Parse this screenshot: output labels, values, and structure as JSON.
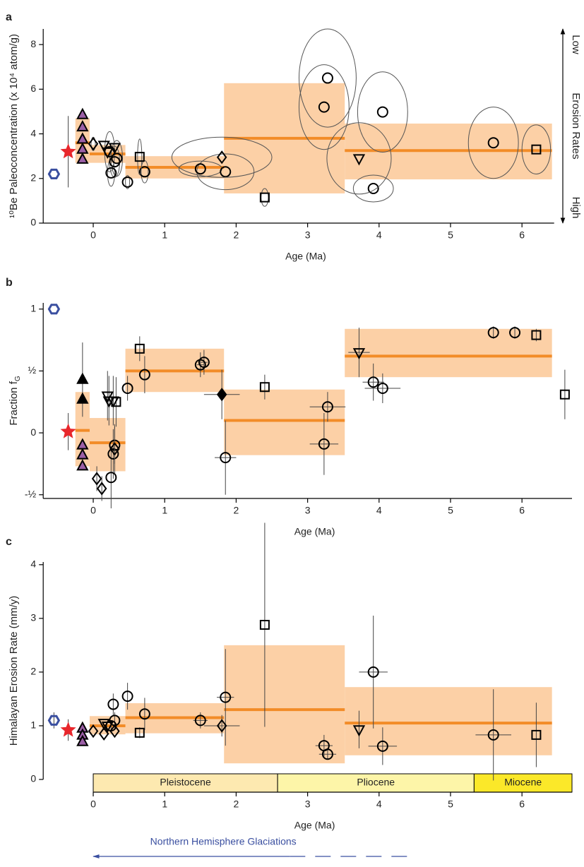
{
  "chart_data": [
    {
      "type": "scatter",
      "label": "a",
      "xlabel": "Age (Ma)",
      "ylabel": "¹⁰Be Paleoconcentration (x 10⁴ atom/g)",
      "xlim": [
        -0.7,
        6.45
      ],
      "ylim": [
        0,
        8.7
      ],
      "xticks": [
        0,
        1,
        2,
        3,
        4,
        5,
        6
      ],
      "yticks": [
        0,
        2,
        4,
        6,
        8
      ],
      "right_annotations": [
        "Low",
        "Erosion Rates",
        "High"
      ],
      "boxes": {
        "x0": [
          -0.25,
          -0.05,
          0.45,
          1.83,
          3.52
        ],
        "x1": [
          -0.05,
          0.45,
          1.83,
          3.52,
          6.42
        ],
        "y0": [
          2.7,
          2.7,
          2.0,
          1.33,
          1.96
        ],
        "y1": [
          4.7,
          3.5,
          3.0,
          6.27,
          4.46
        ],
        "mean": [
          3.6,
          3.1,
          2.5,
          3.8,
          3.25
        ],
        "color": "#fbc896",
        "mean_color": "#f28c28"
      },
      "series": [
        {
          "marker": "circle",
          "color": "#000",
          "fill": "none",
          "error_style": "ellipse",
          "x": [
            0.48,
            0.72,
            0.25,
            0.3,
            0.33,
            0.23,
            1.5,
            1.85,
            3.23,
            3.28,
            3.92,
            4.05,
            5.6
          ],
          "y": [
            1.84,
            2.3,
            2.25,
            2.75,
            2.9,
            3.2,
            2.43,
            2.3,
            5.2,
            6.5,
            1.55,
            4.98,
            3.6
          ],
          "xerr": [
            0.02,
            0.05,
            0.05,
            0.07,
            0.08,
            0.07,
            0.3,
            0.4,
            0.35,
            0.4,
            0.28,
            0.35,
            0.35
          ],
          "yerr": [
            0.3,
            0.5,
            0.6,
            0.7,
            0.8,
            0.9,
            0.35,
            0.8,
            1.9,
            2.2,
            0.6,
            1.8,
            1.6
          ]
        },
        {
          "marker": "square",
          "color": "#000",
          "fill": "none",
          "error_style": "ellipse",
          "x": [
            0.65,
            2.4,
            6.2
          ],
          "y": [
            2.97,
            1.15,
            3.3
          ],
          "xerr": [
            0.02,
            0.05,
            0.2
          ],
          "yerr": [
            0.8,
            0.4,
            1.1
          ]
        },
        {
          "marker": "diamond",
          "color": "#000",
          "fill": "none",
          "error_style": "ellipse",
          "x": [
            0.0,
            1.8
          ],
          "y": [
            3.55,
            2.95
          ],
          "xerr": [
            0.03,
            0.7
          ],
          "yerr": [
            0.3,
            0.9
          ]
        },
        {
          "marker": "down-triangle",
          "color": "#000",
          "fill": "none",
          "error_style": "ellipse",
          "x": [
            0.15,
            0.2,
            0.3,
            3.72
          ],
          "y": [
            3.5,
            3.2,
            3.4,
            2.9
          ],
          "xerr": [
            null,
            null,
            null,
            0.45
          ],
          "yerr": [
            null,
            null,
            null,
            1.6
          ]
        },
        {
          "marker": "up-triangle",
          "color": "#000",
          "fill": "#9b5fa6",
          "x": [
            -0.15,
            -0.15,
            -0.15,
            -0.15,
            -0.15
          ],
          "y": [
            4.85,
            4.3,
            3.75,
            3.3,
            2.85
          ]
        },
        {
          "marker": "star",
          "color": "#e8262b",
          "fill": "#e8262b",
          "error_style": "bar",
          "x": [
            -0.35
          ],
          "y": [
            3.2
          ],
          "yerr": [
            1.6
          ]
        },
        {
          "marker": "hexagon",
          "color": "#3a4fa0",
          "fill": "none",
          "x": [
            -0.55
          ],
          "y": [
            2.2
          ]
        }
      ]
    },
    {
      "type": "scatter",
      "label": "b",
      "xlabel": "Age (Ma)",
      "ylabel": "Fraction f",
      "ylabel_sub": "G",
      "xlim": [
        -0.7,
        6.7
      ],
      "ylim": [
        -0.53,
        1.05
      ],
      "xticks": [
        0,
        1,
        2,
        3,
        4,
        5,
        6
      ],
      "yticks": [
        {
          "value": -0.5,
          "label": "-½"
        },
        0,
        {
          "value": 0.5,
          "label": "½"
        },
        1
      ],
      "boxes": {
        "x0": [
          -0.25,
          -0.05,
          0.45,
          1.83,
          3.52
        ],
        "x1": [
          -0.05,
          0.45,
          1.83,
          3.52,
          6.42
        ],
        "y0": [
          -0.27,
          -0.31,
          0.33,
          -0.18,
          0.45
        ],
        "y1": [
          0.33,
          0.12,
          0.68,
          0.35,
          0.84
        ],
        "mean": [
          0.02,
          -0.08,
          0.5,
          0.1,
          0.62
        ],
        "color": "#fbc896",
        "mean_color": "#f28c28"
      },
      "series": [
        {
          "marker": "circle",
          "color": "#000",
          "fill": "none",
          "error_style": "bar",
          "x": [
            0.48,
            0.72,
            1.5,
            1.55,
            1.85,
            0.3,
            0.28,
            0.25,
            3.23,
            3.28,
            3.92,
            4.05,
            5.6,
            5.9
          ],
          "y": [
            0.36,
            0.47,
            0.55,
            0.57,
            -0.2,
            -0.1,
            -0.17,
            -0.36,
            -0.09,
            0.21,
            0.41,
            0.36,
            0.81,
            0.81
          ],
          "xerr": [
            null,
            null,
            0.05,
            0.05,
            0.15,
            null,
            null,
            null,
            0.2,
            0.25,
            0.15,
            0.25,
            null,
            null
          ],
          "yerr": [
            0.1,
            0.15,
            0.1,
            0.1,
            0.3,
            0.15,
            0.2,
            0.25,
            0.25,
            0.12,
            0.15,
            0.12,
            0.05,
            0.05
          ]
        },
        {
          "marker": "square",
          "color": "#000",
          "fill": "none",
          "error_style": "bar",
          "x": [
            0.65,
            0.32,
            2.4,
            6.2,
            6.6
          ],
          "y": [
            0.68,
            0.25,
            0.37,
            0.79,
            0.31
          ],
          "yerr": [
            0.1,
            0.2,
            0.1,
            0.05,
            0.2
          ]
        },
        {
          "marker": "diamond",
          "color": "#000",
          "fill": "none",
          "error_style": "bar",
          "x": [
            0.05,
            0.12,
            0.3
          ],
          "y": [
            -0.37,
            -0.45,
            -0.13
          ],
          "yerr": [
            0.1,
            0.1,
            0.2
          ]
        },
        {
          "marker": "diamond",
          "color": "#000",
          "fill": "#000",
          "error_style": "bar",
          "x": [
            1.8
          ],
          "y": [
            0.31
          ],
          "xerr": [
            0.25
          ],
          "yerr": [
            0.2
          ]
        },
        {
          "marker": "down-triangle",
          "color": "#000",
          "fill": "none",
          "error_style": "bar",
          "x": [
            0.2,
            0.22,
            0.28,
            3.72
          ],
          "y": [
            0.3,
            0.26,
            0.26,
            0.65
          ],
          "xerr": [
            null,
            null,
            null,
            0.15
          ],
          "yerr": [
            0.2,
            0.2,
            0.2,
            0.2
          ]
        },
        {
          "marker": "up-triangle",
          "color": "#000",
          "fill": "#9b5fa6",
          "x": [
            -0.15,
            -0.15,
            -0.15
          ],
          "y": [
            -0.1,
            -0.18,
            -0.27
          ]
        },
        {
          "marker": "up-triangle",
          "color": "#000",
          "fill": "#000",
          "error_style": "bar",
          "x": [
            -0.15,
            -0.15
          ],
          "y": [
            0.43,
            0.27
          ],
          "yerr": [
            0.3,
            null
          ]
        },
        {
          "marker": "star",
          "color": "#e8262b",
          "fill": "#e8262b",
          "error_style": "bar",
          "x": [
            -0.35
          ],
          "y": [
            0.01
          ],
          "yerr": [
            0.15
          ]
        },
        {
          "marker": "hexagon",
          "color": "#3a4fa0",
          "fill": "none",
          "x": [
            -0.55
          ],
          "y": [
            1.0
          ]
        }
      ]
    },
    {
      "type": "scatter",
      "label": "c",
      "xlabel": "Age (Ma)",
      "ylabel": "Himalayan Erosion Rate (mm/y)",
      "xlim": [
        -0.7,
        6.7
      ],
      "ylim": [
        0,
        4.05
      ],
      "xticks": [
        0,
        1,
        2,
        3,
        4,
        5,
        6
      ],
      "yticks": [
        0,
        1,
        2,
        3,
        4
      ],
      "boxes": {
        "x0": [
          -0.05,
          0.45,
          1.83,
          3.52
        ],
        "x1": [
          0.45,
          1.83,
          3.52,
          6.42
        ],
        "y0": [
          0.84,
          0.86,
          0.3,
          0.45
        ],
        "y1": [
          1.18,
          1.42,
          2.5,
          1.72
        ],
        "mean": [
          1.0,
          1.15,
          1.3,
          1.05
        ],
        "color": "#fbc896",
        "mean_color": "#f28c28"
      },
      "epochs": [
        {
          "name": "Pleistocene",
          "start": 0,
          "end": 2.58,
          "color": "#fde9b0"
        },
        {
          "name": "Pliocene",
          "start": 2.58,
          "end": 5.33,
          "color": "#fdf5a8"
        },
        {
          "name": "Miocene",
          "start": 5.33,
          "end": 6.7,
          "color": "#fbe829"
        }
      ],
      "glaciation": {
        "label": "Northern Hemisphere Glaciations",
        "from": 2.75,
        "to": 0,
        "dashed_to": 4.45,
        "color": "#3a4fa0"
      },
      "series": [
        {
          "marker": "circle",
          "color": "#000",
          "fill": "none",
          "error_style": "bar",
          "x": [
            0.28,
            0.48,
            0.72,
            1.5,
            1.85,
            0.3,
            0.25,
            3.23,
            3.28,
            3.92,
            4.05,
            5.6
          ],
          "y": [
            1.4,
            1.55,
            1.22,
            1.1,
            1.53,
            1.1,
            1.0,
            0.63,
            0.47,
            2.0,
            0.62,
            0.83
          ],
          "xerr": [
            null,
            null,
            null,
            0.1,
            0.12,
            null,
            null,
            0.12,
            0.12,
            0.2,
            0.2,
            0.25
          ],
          "yerr": [
            0.2,
            0.25,
            0.3,
            0.15,
            0.9,
            0.15,
            0.1,
            0.2,
            0.1,
            1.05,
            0.35,
            0.85
          ]
        },
        {
          "marker": "square",
          "color": "#000",
          "fill": "none",
          "error_style": "bar",
          "x": [
            0.65,
            2.4,
            6.2
          ],
          "y": [
            0.87,
            2.88,
            0.83
          ],
          "yerr": [
            0.1,
            1.9,
            0.6
          ]
        },
        {
          "marker": "diamond",
          "color": "#000",
          "fill": "none",
          "error_style": "bar",
          "x": [
            0.0,
            0.15,
            0.3,
            1.8
          ],
          "y": [
            0.9,
            0.85,
            0.9,
            1.0
          ],
          "xerr": [
            null,
            null,
            null,
            0.25
          ],
          "yerr": [
            null,
            null,
            null,
            0.2
          ]
        },
        {
          "marker": "down-triangle",
          "color": "#000",
          "fill": "none",
          "error_style": "bar",
          "x": [
            0.15,
            0.2,
            3.72
          ],
          "y": [
            1.05,
            1.0,
            0.93
          ],
          "yerr": [
            null,
            null,
            0.35
          ]
        },
        {
          "marker": "up-triangle",
          "color": "#000",
          "fill": "#9b5fa6",
          "x": [
            -0.15,
            -0.15,
            -0.15
          ],
          "y": [
            0.95,
            0.82,
            0.7
          ]
        },
        {
          "marker": "star",
          "color": "#e8262b",
          "fill": "#e8262b",
          "error_style": "bar",
          "x": [
            -0.35
          ],
          "y": [
            0.92
          ],
          "yerr": [
            0.2
          ]
        },
        {
          "marker": "hexagon",
          "color": "#3a4fa0",
          "fill": "none",
          "error_style": "bar",
          "x": [
            -0.55
          ],
          "y": [
            1.1
          ],
          "yerr": [
            0.15
          ]
        }
      ]
    }
  ]
}
